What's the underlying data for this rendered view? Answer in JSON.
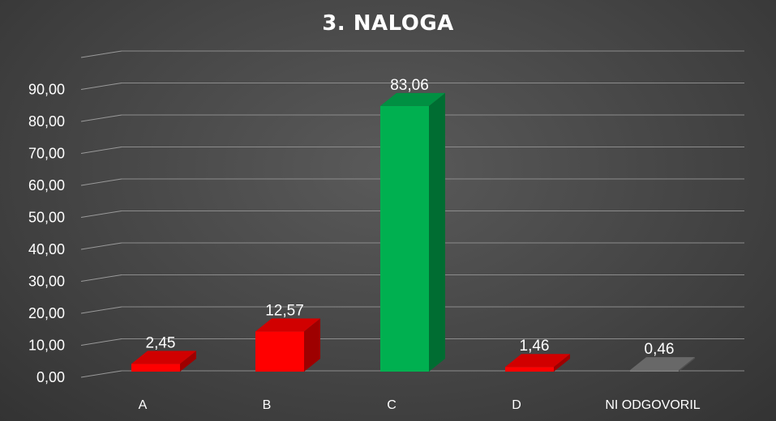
{
  "chart_data": {
    "type": "bar",
    "title": "3. NALOGA",
    "categories": [
      "A",
      "B",
      "C",
      "D",
      "NI ODGOVORIL"
    ],
    "values": [
      2.45,
      12.57,
      83.06,
      1.46,
      0.46
    ],
    "value_labels": [
      "2,45",
      "12,57",
      "83,06",
      "1,46",
      "0,46"
    ],
    "colors": [
      "#ff0000",
      "#ff0000",
      "#00b050",
      "#ff0000",
      "#7f7f7f"
    ],
    "y_ticks": [
      "0,00",
      "10,00",
      "20,00",
      "30,00",
      "40,00",
      "50,00",
      "60,00",
      "70,00",
      "80,00",
      "90,00"
    ],
    "ylim": [
      0,
      100
    ],
    "grid": true,
    "style": "3d-column",
    "xlabel": "",
    "ylabel": ""
  }
}
